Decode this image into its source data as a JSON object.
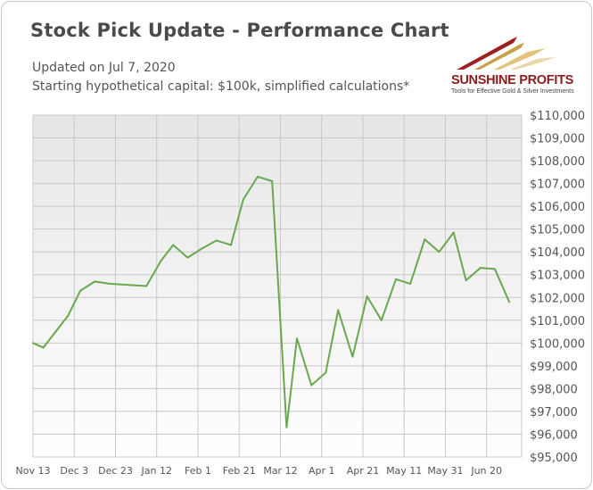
{
  "header": {
    "title": "Stock Pick Update - Performance Chart",
    "updated": "Updated on Jul 7, 2020",
    "capital_note": "Starting hypothetical capital: $100k, simplified calculations*"
  },
  "logo": {
    "name": "SUNSHINE PROFITS",
    "tagline": "Tools for Effective Gold & Silver Investments"
  },
  "colors": {
    "line": "#6aa84f",
    "plot_bg_top": "#e6e6e6",
    "plot_bg_bottom": "#ffffff",
    "grid": "#c8c8c8",
    "title": "#4a4a4a"
  },
  "chart_data": {
    "type": "line",
    "title": "Stock Pick Update - Performance Chart",
    "xlabel": "",
    "ylabel": "",
    "x_ticks": [
      "Nov 13",
      "Dec 3",
      "Dec 23",
      "Jan 12",
      "Feb 1",
      "Feb 21",
      "Mar 12",
      "Apr 1",
      "Apr 21",
      "May 11",
      "May 31",
      "Jun 20"
    ],
    "x_range": [
      "2019-11-13",
      "2020-07-07"
    ],
    "ylim": [
      95000,
      110000
    ],
    "y_ticks": [
      "$95,000",
      "$96,000",
      "$97,000",
      "$98,000",
      "$99,000",
      "$100,000",
      "$101,000",
      "$102,000",
      "$103,000",
      "$104,000",
      "$105,000",
      "$106,000",
      "$107,000",
      "$108,000",
      "$109,000",
      "$110,000"
    ],
    "y_tick_values": [
      95000,
      96000,
      97000,
      98000,
      99000,
      100000,
      101000,
      102000,
      103000,
      104000,
      105000,
      106000,
      107000,
      108000,
      109000,
      110000
    ],
    "grid": true,
    "legend": "none",
    "series": [
      {
        "points": [
          {
            "x": "2019-11-13",
            "y": 100000
          },
          {
            "x": "2019-11-18",
            "y": 99800
          },
          {
            "x": "2019-11-24",
            "y": 100500
          },
          {
            "x": "2019-11-30",
            "y": 101200
          },
          {
            "x": "2019-12-06",
            "y": 102300
          },
          {
            "x": "2019-12-13",
            "y": 102700
          },
          {
            "x": "2019-12-20",
            "y": 102600
          },
          {
            "x": "2020-01-07",
            "y": 102500
          },
          {
            "x": "2020-01-14",
            "y": 103600
          },
          {
            "x": "2020-01-20",
            "y": 104300
          },
          {
            "x": "2020-01-27",
            "y": 103750
          },
          {
            "x": "2020-02-03",
            "y": 104150
          },
          {
            "x": "2020-02-10",
            "y": 104500
          },
          {
            "x": "2020-02-17",
            "y": 104300
          },
          {
            "x": "2020-02-23",
            "y": 106300
          },
          {
            "x": "2020-03-01",
            "y": 107300
          },
          {
            "x": "2020-03-08",
            "y": 107100
          },
          {
            "x": "2020-03-15",
            "y": 96300
          },
          {
            "x": "2020-03-20",
            "y": 100200
          },
          {
            "x": "2020-03-27",
            "y": 98150
          },
          {
            "x": "2020-04-03",
            "y": 98700
          },
          {
            "x": "2020-04-09",
            "y": 101450
          },
          {
            "x": "2020-04-16",
            "y": 99400
          },
          {
            "x": "2020-04-23",
            "y": 102050
          },
          {
            "x": "2020-04-30",
            "y": 101000
          },
          {
            "x": "2020-05-07",
            "y": 102800
          },
          {
            "x": "2020-05-14",
            "y": 102600
          },
          {
            "x": "2020-05-21",
            "y": 104550
          },
          {
            "x": "2020-05-28",
            "y": 104000
          },
          {
            "x": "2020-06-04",
            "y": 104850
          },
          {
            "x": "2020-06-10",
            "y": 102750
          },
          {
            "x": "2020-06-17",
            "y": 103300
          },
          {
            "x": "2020-06-24",
            "y": 103250
          },
          {
            "x": "2020-07-01",
            "y": 101800
          }
        ]
      }
    ]
  }
}
